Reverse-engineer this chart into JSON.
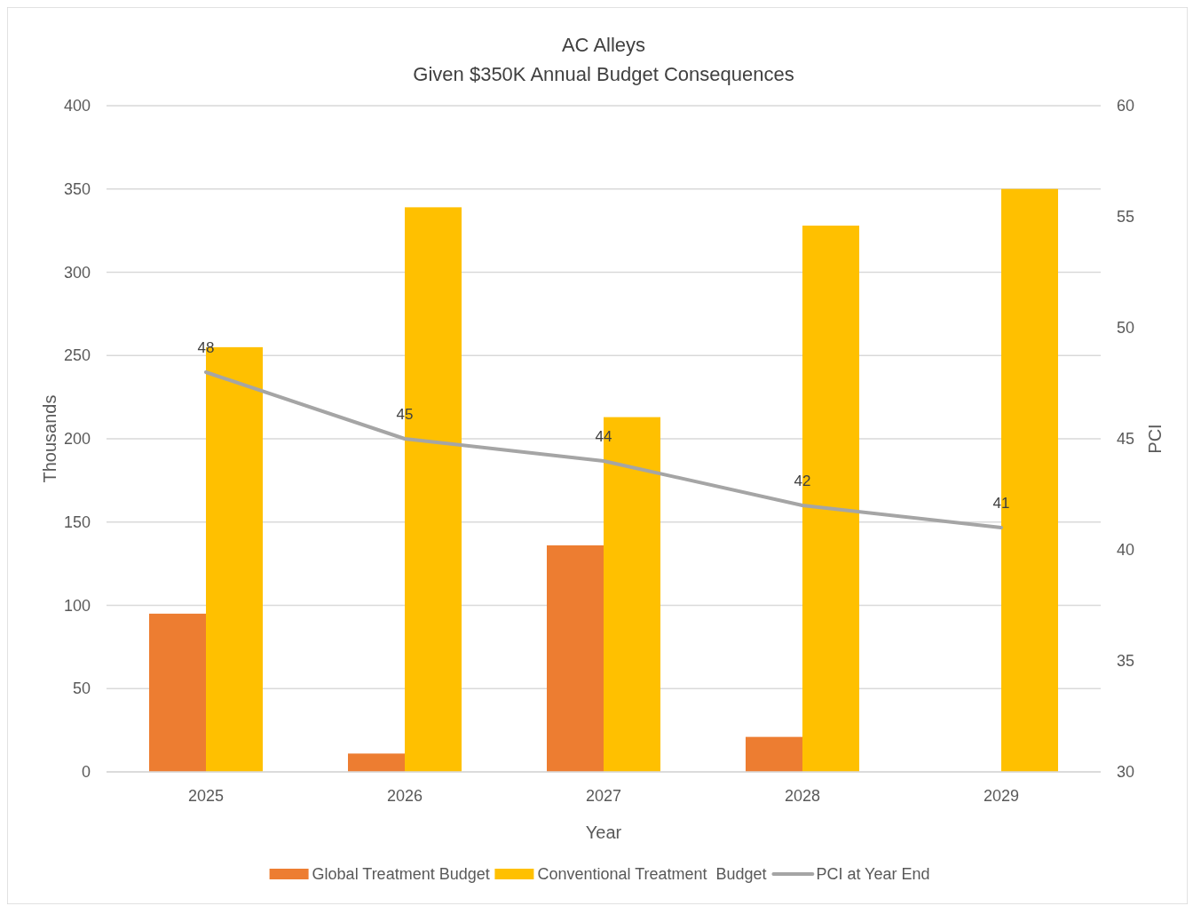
{
  "chart_data": {
    "type": "bar",
    "title": "AC Alleys",
    "subtitle": "Given $350K Annual Budget Consequences",
    "xlabel": "Year",
    "ylabel": "Thousands",
    "y2label": "PCI",
    "categories": [
      "2025",
      "2026",
      "2027",
      "2028",
      "2029"
    ],
    "series": [
      {
        "name": "Global Treatment Budget",
        "color": "#ed7d31",
        "values": [
          95,
          11,
          136,
          21,
          0
        ]
      },
      {
        "name": "Conventional Treatment  Budget",
        "color": "#ffc000",
        "values": [
          255,
          339,
          213,
          328,
          350
        ]
      },
      {
        "name": "PCI at Year End",
        "type": "line",
        "axis": "y2",
        "color": "#a5a5a5",
        "values": [
          48,
          45,
          44,
          42,
          41
        ],
        "data_labels": true,
        "marker": "none"
      }
    ],
    "ylim": [
      0,
      400
    ],
    "yticks": [
      0,
      50,
      100,
      150,
      200,
      250,
      300,
      350,
      400
    ],
    "y2lim": [
      30,
      60
    ],
    "y2ticks": [
      30,
      35,
      40,
      45,
      50,
      55,
      60
    ],
    "grid": "y",
    "legend": "bottom"
  }
}
